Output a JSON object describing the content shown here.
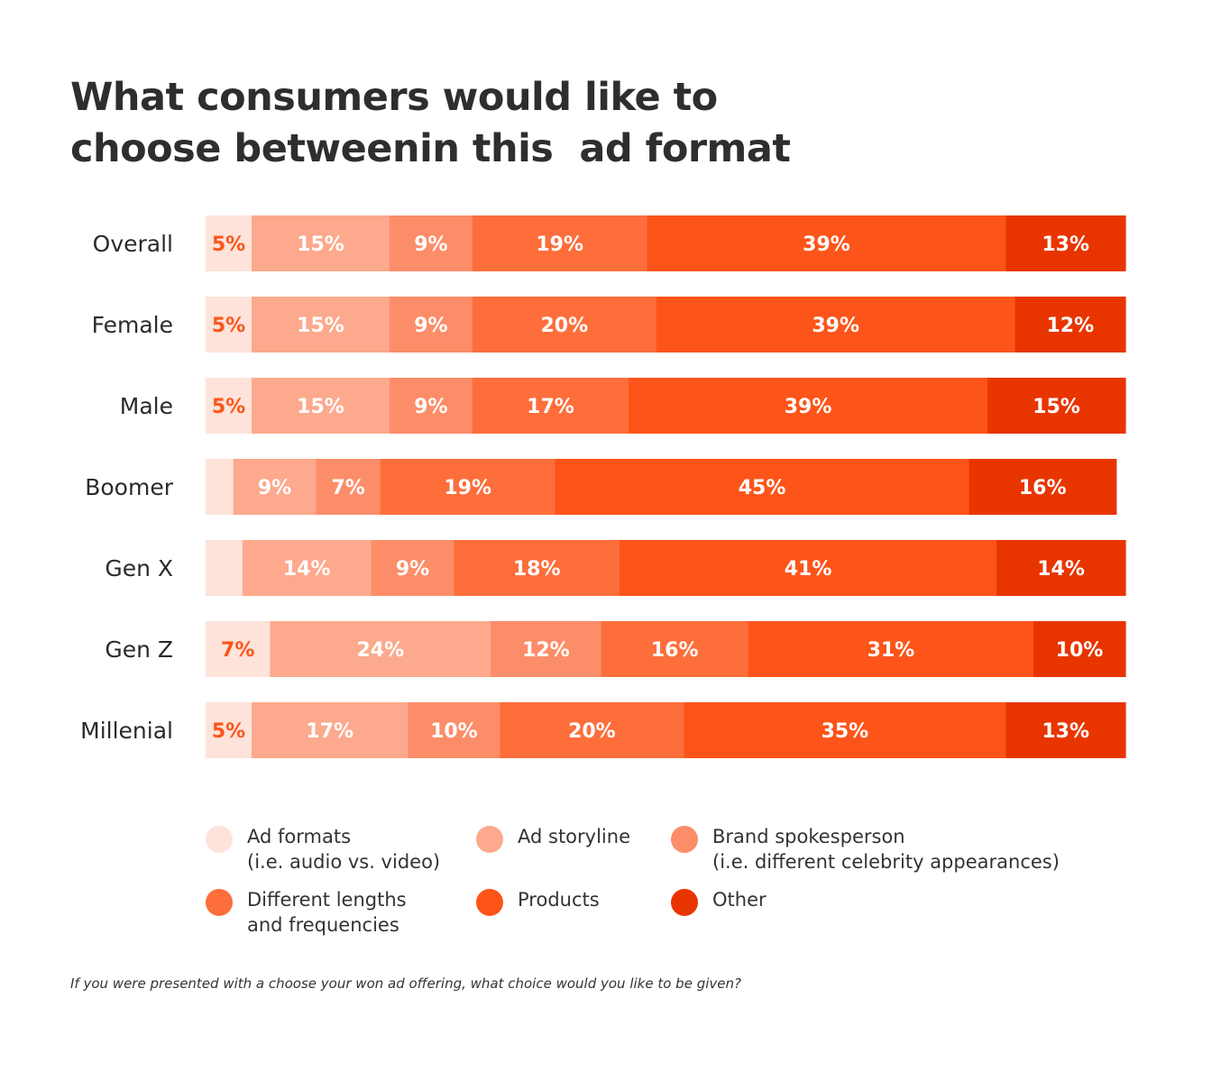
{
  "title_lines": [
    "What consumers would like to",
    "choose betweenin this  ad format"
  ],
  "footnote": "If you were presented with a choose your won ad offering, what choice would you like to be given?",
  "colors": {
    "ad_formats": "#fde3da",
    "ad_storyline": "#fca98d",
    "brand_spokesperson": "#fc8d69",
    "different_lengths": "#fd6e3b",
    "products": "#fd5419",
    "other": "#e83500",
    "label_light": "#ffffff",
    "label_dark": "#fd5419",
    "category_text": "#2b2b2b"
  },
  "legend": [
    {
      "lines": [
        "Ad formats",
        "(i.e. audio vs. video)"
      ],
      "color": "#fde3da"
    },
    {
      "lines": [
        "Ad storyline"
      ],
      "color": "#fca98d"
    },
    {
      "lines": [
        "Brand spokesperson",
        "(i.e. different celebrity appearances)"
      ],
      "color": "#fc8d69"
    },
    {
      "lines": [
        "Different lengths",
        "and frequencies"
      ],
      "color": "#fd6e3b"
    },
    {
      "lines": [
        "Products"
      ],
      "color": "#fd5419"
    },
    {
      "lines": [
        "Other"
      ],
      "color": "#e83500"
    }
  ],
  "chart_data": {
    "type": "bar",
    "orientation": "horizontal",
    "stacked": true,
    "categories": [
      "Overall",
      "Female",
      "Male",
      "Boomer",
      "Gen X",
      "Gen Z",
      "Millenial"
    ],
    "series": [
      {
        "name": "Ad formats (i.e. audio vs. video)",
        "values": [
          5,
          5,
          5,
          3,
          4,
          7,
          5
        ],
        "labels": [
          "5%",
          "5%",
          "5%",
          "",
          "",
          "7%",
          "5%"
        ]
      },
      {
        "name": "Ad storyline",
        "values": [
          15,
          15,
          15,
          9,
          14,
          24,
          17
        ],
        "labels": [
          "15%",
          "15%",
          "15%",
          "9%",
          "14%",
          "24%",
          "17%"
        ]
      },
      {
        "name": "Brand spokesperson (i.e. different celebrity appearances)",
        "values": [
          9,
          9,
          9,
          7,
          9,
          12,
          10
        ],
        "labels": [
          "9%",
          "9%",
          "9%",
          "7%",
          "9%",
          "12%",
          "10%"
        ]
      },
      {
        "name": "Different lengths and frequencies",
        "values": [
          19,
          20,
          17,
          19,
          18,
          16,
          20
        ],
        "labels": [
          "19%",
          "20%",
          "17%",
          "19%",
          "18%",
          "16%",
          "20%"
        ]
      },
      {
        "name": "Products",
        "values": [
          39,
          39,
          39,
          45,
          41,
          31,
          35
        ],
        "labels": [
          "39%",
          "39%",
          "39%",
          "45%",
          "41%",
          "31%",
          "35%"
        ]
      },
      {
        "name": "Other",
        "values": [
          13,
          12,
          15,
          16,
          14,
          10,
          13
        ],
        "labels": [
          "13%",
          "12%",
          "15%",
          "16%",
          "14%",
          "10%",
          "13%"
        ]
      }
    ],
    "xlim": [
      0,
      100
    ],
    "legend_position": "bottom",
    "grid": false
  }
}
